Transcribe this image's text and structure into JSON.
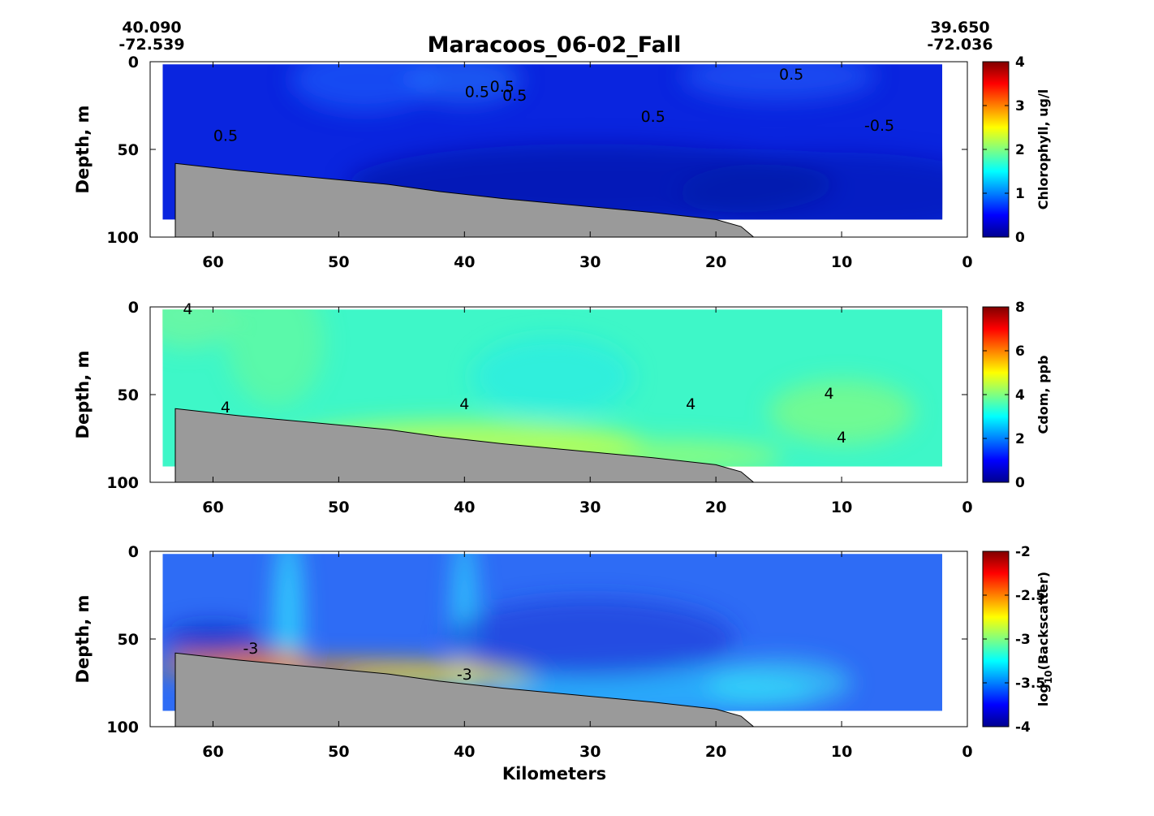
{
  "figure": {
    "title": "Maracoos_06-02_Fall",
    "corner_left": {
      "lat": "40.090",
      "lon": "-72.539"
    },
    "corner_right": {
      "lat": "39.650",
      "lon": "-72.036"
    },
    "xlabel": "Kilometers"
  },
  "chart_data": [
    {
      "type": "heatmap",
      "variable": "chlorophyll",
      "ylabel": "Depth, m",
      "colorbar_label": "Chlorophyll, ug/l",
      "xlim": [
        65,
        0
      ],
      "ylim": [
        0,
        100
      ],
      "xticks": [
        60,
        50,
        40,
        30,
        20,
        10,
        0
      ],
      "yticks": [
        0,
        50,
        100
      ],
      "clim": [
        0,
        4
      ],
      "colorbar_ticks": [
        "0",
        "1",
        "2",
        "3",
        "4"
      ],
      "contour_labels": [
        {
          "text": "0.5",
          "x": 59,
          "y": 42
        },
        {
          "text": "0.5",
          "x": 39,
          "y": 17
        },
        {
          "text": "0.5",
          "x": 37,
          "y": 14
        },
        {
          "text": "0.5",
          "x": 36,
          "y": 19
        },
        {
          "text": "0.5",
          "x": 25,
          "y": 31
        },
        {
          "text": "0.5",
          "x": 14,
          "y": 7
        },
        {
          "text": "-0.5",
          "x": 7,
          "y": 36
        }
      ],
      "bottom_depth": [
        [
          63,
          58
        ],
        [
          58,
          62
        ],
        [
          52,
          66
        ],
        [
          46,
          70
        ],
        [
          42,
          74
        ],
        [
          37,
          78
        ],
        [
          31,
          82
        ],
        [
          25,
          86
        ],
        [
          20,
          90
        ],
        [
          18,
          94
        ],
        [
          17,
          100
        ]
      ],
      "data_extent": {
        "x_min": 2,
        "x_max": 64,
        "y_max": 90
      }
    },
    {
      "type": "heatmap",
      "variable": "cdom",
      "ylabel": "Depth, m",
      "colorbar_label": "Cdom, ppb",
      "xlim": [
        65,
        0
      ],
      "ylim": [
        0,
        100
      ],
      "xticks": [
        60,
        50,
        40,
        30,
        20,
        10,
        0
      ],
      "yticks": [
        0,
        50,
        100
      ],
      "clim": [
        0,
        8
      ],
      "colorbar_ticks": [
        "0",
        "2",
        "4",
        "6",
        "8"
      ],
      "contour_labels": [
        {
          "text": "4",
          "x": 62,
          "y": 1
        },
        {
          "text": "4",
          "x": 59,
          "y": 57
        },
        {
          "text": "4",
          "x": 40,
          "y": 55
        },
        {
          "text": "4",
          "x": 22,
          "y": 55
        },
        {
          "text": "4",
          "x": 11,
          "y": 49
        },
        {
          "text": "4",
          "x": 10,
          "y": 74
        }
      ],
      "bottom_depth": [
        [
          63,
          58
        ],
        [
          58,
          62
        ],
        [
          52,
          66
        ],
        [
          46,
          70
        ],
        [
          42,
          74
        ],
        [
          37,
          78
        ],
        [
          31,
          82
        ],
        [
          25,
          86
        ],
        [
          20,
          90
        ],
        [
          18,
          94
        ],
        [
          17,
          100
        ]
      ],
      "data_extent": {
        "x_min": 2,
        "x_max": 64,
        "y_max": 91
      }
    },
    {
      "type": "heatmap",
      "variable": "backscatter",
      "ylabel": "Depth, m",
      "colorbar_label": "log10(Backscatter)",
      "xlim": [
        65,
        0
      ],
      "ylim": [
        0,
        100
      ],
      "xticks": [
        60,
        50,
        40,
        30,
        20,
        10,
        0
      ],
      "yticks": [
        0,
        50,
        100
      ],
      "clim": [
        -4,
        -2
      ],
      "colorbar_ticks": [
        "-4",
        "-3.5",
        "-3",
        "-2.5",
        "-2"
      ],
      "contour_labels": [
        {
          "text": "-3",
          "x": 57,
          "y": 55
        },
        {
          "text": "-3",
          "x": 40,
          "y": 70
        }
      ],
      "bottom_depth": [
        [
          63,
          58
        ],
        [
          58,
          62
        ],
        [
          52,
          66
        ],
        [
          46,
          70
        ],
        [
          42,
          74
        ],
        [
          37,
          78
        ],
        [
          31,
          82
        ],
        [
          25,
          86
        ],
        [
          20,
          90
        ],
        [
          18,
          94
        ],
        [
          17,
          100
        ]
      ],
      "data_extent": {
        "x_min": 2,
        "x_max": 64,
        "y_max": 91
      }
    }
  ]
}
